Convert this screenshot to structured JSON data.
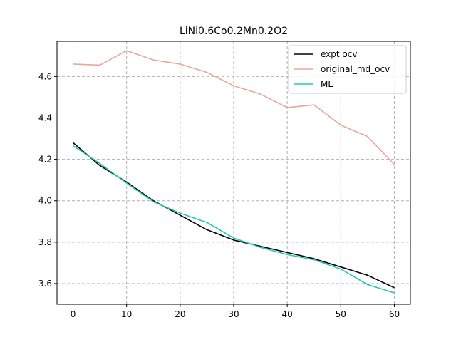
{
  "chart_data": {
    "type": "line",
    "title": "LiNi0.6Co0.2Mn0.2O2",
    "xlabel": "",
    "ylabel": "",
    "xlim": [
      -3,
      63
    ],
    "ylim": [
      3.5,
      4.77
    ],
    "xticks": [
      0,
      10,
      20,
      30,
      40,
      50,
      60
    ],
    "yticks": [
      3.6,
      3.8,
      4.0,
      4.2,
      4.4,
      4.6
    ],
    "ytick_labels": [
      "3.6",
      "3.8",
      "4.0",
      "4.2",
      "4.4",
      "4.6"
    ],
    "grid": true,
    "legend_position": "top-right",
    "x": [
      0,
      5,
      10,
      15,
      20,
      25,
      30,
      35,
      40,
      45,
      50,
      55,
      60
    ],
    "series": [
      {
        "name": "expt ocv",
        "color": "#000000",
        "values": [
          4.28,
          4.17,
          4.09,
          4.0,
          3.93,
          3.86,
          3.81,
          3.78,
          3.75,
          3.72,
          3.68,
          3.64,
          3.58
        ]
      },
      {
        "name": "original_md_ocv",
        "color": "#e8a898",
        "values": [
          4.66,
          4.655,
          4.725,
          4.68,
          4.66,
          4.62,
          4.555,
          4.515,
          4.45,
          4.463,
          4.365,
          4.31,
          4.175
        ]
      },
      {
        "name": "ML",
        "color": "#20c8b4",
        "values": [
          4.265,
          4.18,
          4.085,
          3.995,
          3.94,
          3.895,
          3.82,
          3.775,
          3.74,
          3.715,
          3.67,
          3.595,
          3.555
        ]
      }
    ]
  }
}
